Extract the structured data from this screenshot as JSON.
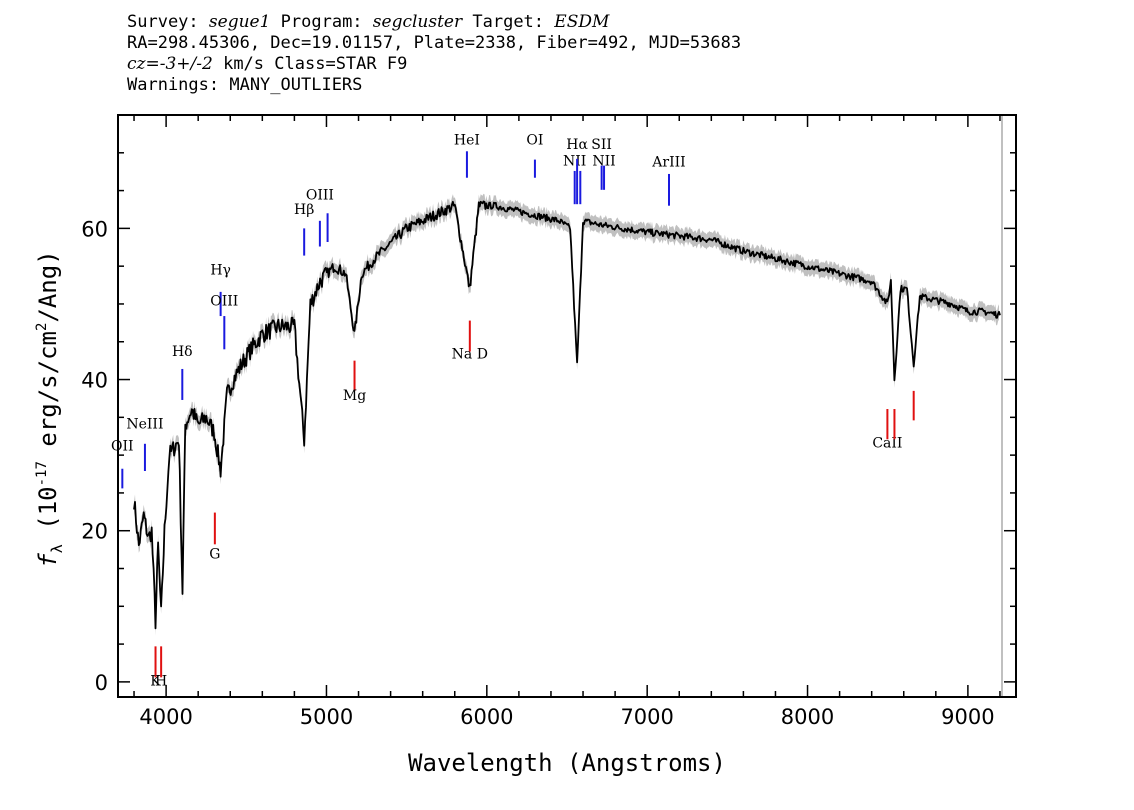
{
  "header": {
    "line1": {
      "survey_label": "Survey:",
      "survey": "segue1",
      "program_label": "Program:",
      "program": "segcluster",
      "target_label": "Target:",
      "target": "ESDM"
    },
    "line2": "RA=298.45306, Dec=19.01157, Plate=2338, Fiber=492, MJD=53683",
    "line3": {
      "cz_label": "cz=",
      "cz_value": "-3+/-2",
      "cz_unit": "km/s",
      "class": "Class=STAR F9"
    },
    "line4": "Warnings: MANY_OUTLIERS"
  },
  "colors": {
    "emission": "#1a1adf",
    "absorption": "#e01010",
    "spectrum": "#000000",
    "error": "#b0b0b0",
    "sky_line": "#c0c0c0"
  },
  "chart_data": {
    "type": "line",
    "xlabel": "Wavelength (Angstroms)",
    "ylabel": "f_λ (10^-17 erg/s/cm^2/Ang)",
    "xlim": [
      3700,
      9300
    ],
    "ylim": [
      -2,
      75
    ],
    "x_ticks": [
      4000,
      5000,
      6000,
      7000,
      8000,
      9000
    ],
    "y_ticks": [
      0,
      20,
      40,
      60
    ],
    "series": [
      {
        "x": [
          3800,
          3830,
          3860,
          3890,
          3910,
          3934,
          3950,
          3969,
          3990,
          4020,
          4050,
          4080,
          4102,
          4120,
          4160,
          4200,
          4250,
          4300,
          4340,
          4380,
          4420,
          4470,
          4530,
          4600,
          4700,
          4800,
          4861,
          4900,
          4960,
          5050,
          5120,
          5175,
          5220,
          5300,
          5400,
          5500,
          5600,
          5700,
          5800,
          5893,
          5950,
          6050,
          6150,
          6250,
          6350,
          6450,
          6520,
          6563,
          6600,
          6700,
          6850,
          7000,
          7200,
          7400,
          7600,
          7800,
          8000,
          8200,
          8400,
          8498,
          8520,
          8542,
          8580,
          8620,
          8662,
          8700,
          8800,
          8900,
          9000,
          9100,
          9200
        ],
        "values": [
          24,
          18,
          22,
          19,
          20,
          8,
          18,
          9,
          20,
          30,
          31,
          32,
          12,
          34,
          36,
          34,
          35,
          33,
          28,
          38,
          40,
          42,
          44,
          46,
          47,
          47,
          32,
          50,
          53,
          55,
          54,
          46,
          54,
          56,
          58,
          60,
          61,
          62,
          63,
          52,
          63,
          63,
          62.5,
          62,
          61.5,
          61,
          60,
          42,
          61,
          60.5,
          60,
          59.5,
          59,
          58.5,
          57,
          56,
          55,
          54,
          53,
          50,
          53,
          40,
          52,
          52,
          42,
          51,
          50.5,
          50,
          49,
          49,
          48.5
        ]
      }
    ],
    "lines": [
      {
        "label": "OII",
        "wave": 3727,
        "kind": "emission",
        "label_y": 30.6,
        "top": 28.2,
        "bottom": 25.6
      },
      {
        "label": "NeIII",
        "wave": 3868,
        "kind": "emission",
        "label_y": 33.5,
        "top": 31.5,
        "bottom": 27.9
      },
      {
        "label": "Hδ",
        "wave": 4101,
        "kind": "emission",
        "label_y": 43.1,
        "top": 41.4,
        "bottom": 37.3
      },
      {
        "label": "Hγ",
        "wave": 4340,
        "kind": "emission",
        "label_y": 53.9,
        "top": 51.6,
        "bottom": 48.4
      },
      {
        "label": "OIII",
        "wave": 4363,
        "kind": "emission",
        "label_y": 49.8,
        "top": 48.4,
        "bottom": 44.0
      },
      {
        "label": "Hβ",
        "wave": 4861,
        "kind": "emission",
        "label_y": 61.9,
        "top": 60.0,
        "bottom": 56.4
      },
      {
        "label": "OIII",
        "wave": 4959,
        "kind": "emission",
        "label_y": 63.8,
        "top": 61.0,
        "bottom": 57.6
      },
      {
        "label": "",
        "wave": 5007,
        "kind": "emission",
        "label_y": null,
        "top": 62.0,
        "bottom": 58.2
      },
      {
        "label": "HeI",
        "wave": 5876,
        "kind": "emission",
        "label_y": 71.1,
        "top": 70.2,
        "bottom": 66.7
      },
      {
        "label": "OI",
        "wave": 6300,
        "kind": "emission",
        "label_y": 71.1,
        "top": 69.1,
        "bottom": 66.7
      },
      {
        "label": "NII",
        "wave": 6548,
        "kind": "emission",
        "label_y": 68.3,
        "top": 67.6,
        "bottom": 63.2
      },
      {
        "label": "Hα",
        "wave": 6563,
        "kind": "emission",
        "label_y": 70.5,
        "top": 69.2,
        "bottom": 63.2
      },
      {
        "label": "",
        "wave": 6583,
        "kind": "emission",
        "label_y": null,
        "top": 67.6,
        "bottom": 63.2
      },
      {
        "label": "SII",
        "wave": 6716,
        "kind": "emission",
        "label_y": 70.5,
        "top": 68.3,
        "bottom": 65.1
      },
      {
        "label": "NII",
        "wave": 6731,
        "kind": "emission",
        "label_y": 68.3,
        "top": 68.3,
        "bottom": 65.1
      },
      {
        "label": "ArIII",
        "wave": 7136,
        "kind": "emission",
        "label_y": 68.2,
        "top": 67.2,
        "bottom": 63.0
      },
      {
        "label": "K",
        "wave": 3934,
        "kind": "absorption",
        "label_y": -0.5,
        "top": 4.7,
        "bottom": 0.6
      },
      {
        "label": "H",
        "wave": 3969,
        "kind": "absorption",
        "label_y": -0.5,
        "top": 4.7,
        "bottom": 0.6
      },
      {
        "label": "G",
        "wave": 4304,
        "kind": "absorption",
        "label_y": 16.3,
        "top": 22.4,
        "bottom": 18.2
      },
      {
        "label": "Mg",
        "wave": 5175,
        "kind": "absorption",
        "label_y": 37.3,
        "top": 42.5,
        "bottom": 38.5
      },
      {
        "label": "Na D",
        "wave": 5894,
        "kind": "absorption",
        "label_y": 42.8,
        "top": 47.8,
        "bottom": 43.7
      },
      {
        "label": "CaII",
        "wave": 8498,
        "kind": "absorption",
        "label_y": 31.0,
        "top": 36.1,
        "bottom": 32.1
      },
      {
        "label": "",
        "wave": 8542,
        "kind": "absorption",
        "label_y": null,
        "top": 36.1,
        "bottom": 32.1
      },
      {
        "label": "",
        "wave": 8662,
        "kind": "absorption",
        "label_y": null,
        "top": 38.5,
        "bottom": 34.6
      }
    ]
  }
}
